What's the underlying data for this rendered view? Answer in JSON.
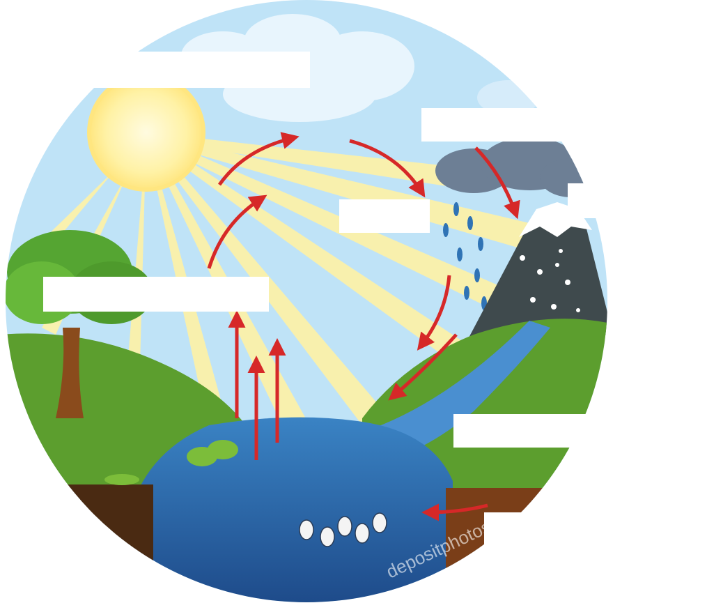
{
  "labels": [
    {
      "id": "label-top-left",
      "text": ""
    },
    {
      "id": "label-top-right",
      "text": ""
    },
    {
      "id": "label-center",
      "text": ""
    },
    {
      "id": "label-mountain",
      "text": ""
    },
    {
      "id": "label-left",
      "text": ""
    },
    {
      "id": "label-river",
      "text": ""
    },
    {
      "id": "label-bottom-right",
      "text": ""
    }
  ],
  "watermark": "depositphotos",
  "colors": {
    "sky": "#bfe3f7",
    "sun": "#fff4b0",
    "sun_ray": "#fff2a6",
    "grass": "#5c9e2e",
    "grass_light": "#7cbd3a",
    "water": "#2f73b5",
    "water_deep": "#1f4f8f",
    "soil": "#7a3e18",
    "mountain": "#3f4a4d",
    "snow": "#ffffff",
    "cloud_dark": "#6d7f95",
    "arrow": "#d62828",
    "tree_trunk": "#8a4b1c",
    "tree_leaves": "#55a532"
  }
}
